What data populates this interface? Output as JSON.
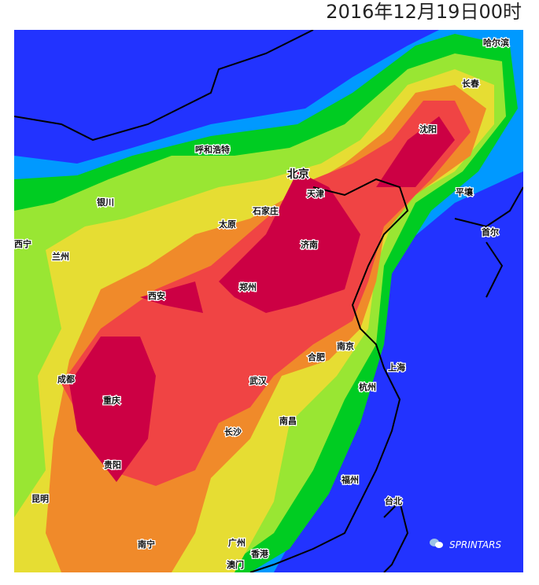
{
  "title": "2016年12月19日00时",
  "brand": "SPRINTARS",
  "colors": {
    "ocean": "#2233ff",
    "lightblue": "#0099ff",
    "green": "#00cc22",
    "lightgreen": "#99e633",
    "yellow": "#e6dd33",
    "orange": "#f08a2a",
    "red": "#f04444",
    "crimson": "#cc0044"
  },
  "cities": [
    "北京",
    "天津",
    "石家庄",
    "太原",
    "呼和浩特",
    "银川",
    "西宁",
    "兰州",
    "西安",
    "郑州",
    "济南",
    "沈阳",
    "长春",
    "哈尔滨",
    "平壤",
    "首尔",
    "南京",
    "合肥",
    "上海",
    "杭州",
    "武汉",
    "南昌",
    "长沙",
    "成都",
    "重庆",
    "贵阳",
    "昆明",
    "南宁",
    "广州",
    "香港",
    "澳门",
    "福州",
    "台北"
  ]
}
